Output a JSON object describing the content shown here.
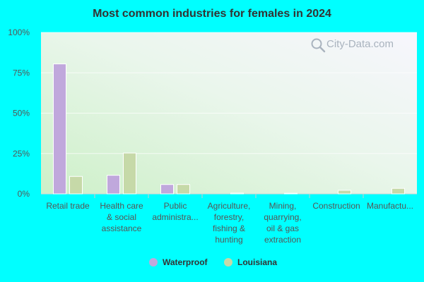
{
  "chart_data": {
    "type": "bar",
    "title": "Most common industries for females in 2024",
    "xlabel": "",
    "ylabel": "",
    "ylim": [
      0,
      100
    ],
    "y_ticks": [
      "0%",
      "25%",
      "50%",
      "75%",
      "100%"
    ],
    "y_tick_values": [
      0,
      25,
      50,
      75,
      100
    ],
    "categories": [
      [
        "Retail trade"
      ],
      [
        "Health care",
        "& social",
        "assistance"
      ],
      [
        "Public",
        "administra..."
      ],
      [
        "Agriculture,",
        "forestry,",
        "fishing &",
        "hunting"
      ],
      [
        "Mining,",
        "quarrying,",
        "oil & gas",
        "extraction"
      ],
      [
        "Construction"
      ],
      [
        "Manufactu..."
      ]
    ],
    "series": [
      {
        "name": "Waterproof",
        "color": "#c0a8dc",
        "values": [
          80.5,
          11.5,
          5.8,
          0,
          0,
          0,
          0
        ]
      },
      {
        "name": "Louisiana",
        "color": "#c6d9a8",
        "values": [
          10.8,
          25.3,
          5.8,
          0.5,
          0.4,
          2.2,
          3.4
        ]
      }
    ],
    "grid": true,
    "legend_position": "bottom"
  },
  "watermark": {
    "text": "City-Data.com",
    "icon": "magnifier-icon"
  }
}
